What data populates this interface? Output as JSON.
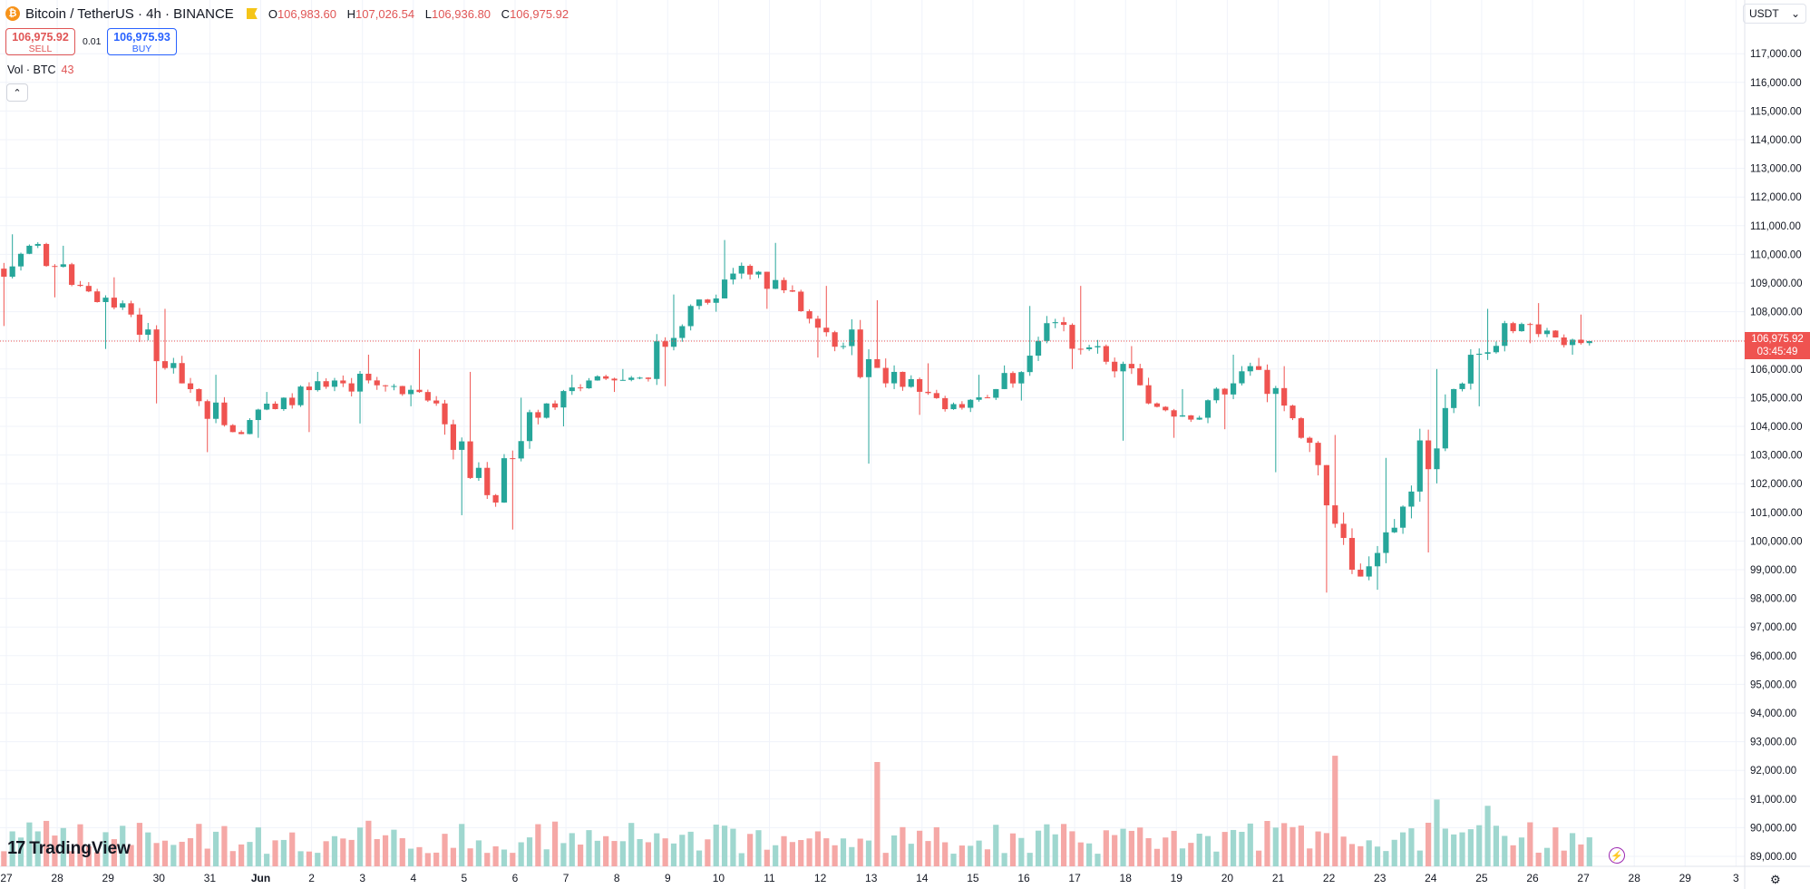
{
  "header": {
    "symbol_title": "Bitcoin / TetherUS · 4h · BINANCE",
    "ohlc": [
      {
        "key": "O",
        "value": "106,983.60"
      },
      {
        "key": "H",
        "value": "107,026.54"
      },
      {
        "key": "L",
        "value": "106,936.80"
      },
      {
        "key": "C",
        "value": "106,975.92"
      }
    ]
  },
  "trade": {
    "sell_price": "106,975.92",
    "sell_label": "SELL",
    "buy_price": "106,975.93",
    "buy_label": "BUY",
    "spread": "0.01"
  },
  "volume_label": {
    "name": "Vol · BTC",
    "value": "43"
  },
  "currency_selector": {
    "value": "USDT",
    "icon": "chevron-down-icon"
  },
  "last_price": {
    "price": "106,975.92",
    "countdown": "03:45:49"
  },
  "brand": "TradingView",
  "colors": {
    "up": "#26a69a",
    "down": "#ef5350",
    "up_vol": "#9fd7cf",
    "down_vol": "#f5a8a6",
    "grid": "#f0f3fa"
  },
  "chart_data": {
    "type": "candlestick",
    "timeframe": "4h",
    "symbol": "BTCUSDT",
    "y_ticks": [
      "117,000.00",
      "116,000.00",
      "115,000.00",
      "114,000.00",
      "113,000.00",
      "112,000.00",
      "111,000.00",
      "110,000.00",
      "109,000.00",
      "108,000.00",
      "107,000.00",
      "106,000.00",
      "105,000.00",
      "104,000.00",
      "103,000.00",
      "102,000.00",
      "101,000.00",
      "100,000.00",
      "99,000.00",
      "98,000.00",
      "97,000.00",
      "96,000.00",
      "95,000.00",
      "94,000.00",
      "93,000.00",
      "92,000.00",
      "91,000.00",
      "90,000.00",
      "89,000.00"
    ],
    "ylim": [
      88500,
      117800
    ],
    "x_ticks": [
      "27",
      "28",
      "29",
      "30",
      "31",
      "Jun",
      "2",
      "3",
      "4",
      "5",
      "6",
      "7",
      "8",
      "9",
      "10",
      "11",
      "12",
      "13",
      "14",
      "15",
      "16",
      "17",
      "18",
      "19",
      "20",
      "21",
      "22",
      "23",
      "24",
      "25",
      "26",
      "27",
      "28",
      "29",
      "3"
    ],
    "grid": true,
    "last_close": 106975.92,
    "days": [
      {
        "label": "27",
        "open": 109000,
        "high": 110700,
        "low": 107500,
        "close": 110300
      },
      {
        "label": "28",
        "open": 110300,
        "high": 110300,
        "low": 108500,
        "close": 108900
      },
      {
        "label": "29",
        "open": 108900,
        "high": 109200,
        "low": 106700,
        "close": 107900
      },
      {
        "label": "30",
        "open": 107900,
        "high": 108100,
        "low": 104800,
        "close": 105500
      },
      {
        "label": "31",
        "open": 105500,
        "high": 105800,
        "low": 103100,
        "close": 103800
      },
      {
        "label": "Jun",
        "open": 103800,
        "high": 105200,
        "low": 103600,
        "close": 105000
      },
      {
        "label": "2",
        "open": 105000,
        "high": 105900,
        "low": 103800,
        "close": 105600
      },
      {
        "label": "3",
        "open": 105600,
        "high": 106500,
        "low": 104100,
        "close": 105400
      },
      {
        "label": "4",
        "open": 105400,
        "high": 106700,
        "low": 104700,
        "close": 104800
      },
      {
        "label": "5",
        "open": 104800,
        "high": 105900,
        "low": 100900,
        "close": 101600
      },
      {
        "label": "6",
        "open": 101600,
        "high": 105000,
        "low": 100400,
        "close": 104300
      },
      {
        "label": "7",
        "open": 104300,
        "high": 105800,
        "low": 104000,
        "close": 105600
      },
      {
        "label": "8",
        "open": 105600,
        "high": 106000,
        "low": 105200,
        "close": 105700
      },
      {
        "label": "9",
        "open": 105700,
        "high": 108600,
        "low": 105400,
        "close": 108200
      },
      {
        "label": "10",
        "open": 108200,
        "high": 110500,
        "low": 108000,
        "close": 109600
      },
      {
        "label": "11",
        "open": 109600,
        "high": 110400,
        "low": 108100,
        "close": 108700
      },
      {
        "label": "12",
        "open": 108700,
        "high": 108900,
        "low": 106400,
        "close": 106800
      },
      {
        "label": "13",
        "open": 106800,
        "high": 108400,
        "low": 102700,
        "close": 105900
      },
      {
        "label": "14",
        "open": 105900,
        "high": 106200,
        "low": 104400,
        "close": 104600
      },
      {
        "label": "15",
        "open": 104600,
        "high": 105800,
        "low": 104500,
        "close": 105300
      },
      {
        "label": "16",
        "open": 105300,
        "high": 108200,
        "low": 104900,
        "close": 107600
      },
      {
        "label": "17",
        "open": 107600,
        "high": 108900,
        "low": 106000,
        "close": 106800
      },
      {
        "label": "18",
        "open": 106800,
        "high": 106800,
        "low": 103500,
        "close": 104800
      },
      {
        "label": "19",
        "open": 104800,
        "high": 105300,
        "low": 103600,
        "close": 104300
      },
      {
        "label": "20",
        "open": 104300,
        "high": 106500,
        "low": 103900,
        "close": 106100
      },
      {
        "label": "21",
        "open": 106100,
        "high": 106100,
        "low": 102400,
        "close": 103600
      },
      {
        "label": "22",
        "open": 103600,
        "high": 103700,
        "low": 98200,
        "close": 99000
      },
      {
        "label": "23",
        "open": 99000,
        "high": 102900,
        "low": 98300,
        "close": 101200
      },
      {
        "label": "24",
        "open": 101200,
        "high": 106000,
        "low": 99600,
        "close": 105300
      },
      {
        "label": "25",
        "open": 105300,
        "high": 108100,
        "low": 104700,
        "close": 107600
      },
      {
        "label": "26",
        "open": 107600,
        "high": 108300,
        "low": 106900,
        "close": 107100
      },
      {
        "label": "27",
        "open": 107100,
        "high": 107900,
        "low": 106500,
        "close": 106976
      }
    ],
    "volume_spikes": [
      {
        "label": "13",
        "value": 5
      },
      {
        "label": "22",
        "value": 5.3
      },
      {
        "label": "24",
        "value": 3.2
      },
      {
        "label": "25",
        "value": 2.9
      }
    ]
  }
}
